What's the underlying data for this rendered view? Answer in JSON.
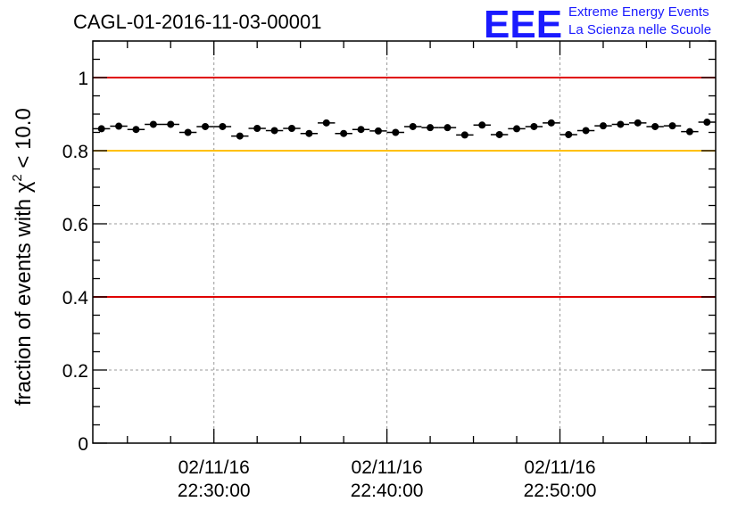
{
  "chart_data": {
    "type": "scatter",
    "title": "CAGL-01-2016-11-03-00001",
    "ylabel_main": "fraction of events with χ",
    "ylabel_sup": "2",
    "ylabel_rest": " < 10.0",
    "xlim": [
      "22:23:00",
      "22:59:00"
    ],
    "ylim": [
      0,
      1.1
    ],
    "yticks": [
      "0",
      "0.2",
      "0.4",
      "0.6",
      "0.8",
      "1"
    ],
    "yticks_values": [
      0,
      0.2,
      0.4,
      0.6,
      0.8,
      1.0
    ],
    "xticks": [
      {
        "time": "22:30:00",
        "date": "02/11/16"
      },
      {
        "time": "22:40:00",
        "date": "02/11/16"
      },
      {
        "time": "22:50:00",
        "date": "02/11/16"
      }
    ],
    "grid": true,
    "bin_width_minutes": 1,
    "reference_lines": [
      {
        "y": 1.0,
        "color": "#e00000"
      },
      {
        "y": 0.8,
        "color": "#ffc000"
      },
      {
        "y": 0.4,
        "color": "#e00000"
      }
    ],
    "series": [
      {
        "color": "#000000",
        "x": [
          "22:23:30",
          "22:24:30",
          "22:25:30",
          "22:26:30",
          "22:27:30",
          "22:28:30",
          "22:29:30",
          "22:30:30",
          "22:31:30",
          "22:32:30",
          "22:33:30",
          "22:34:30",
          "22:35:30",
          "22:36:30",
          "22:37:30",
          "22:38:30",
          "22:39:30",
          "22:40:30",
          "22:41:30",
          "22:42:30",
          "22:43:30",
          "22:44:30",
          "22:45:30",
          "22:46:30",
          "22:47:30",
          "22:48:30",
          "22:49:30",
          "22:50:30",
          "22:51:30",
          "22:52:30",
          "22:53:30",
          "22:54:30",
          "22:55:30",
          "22:56:30",
          "22:57:30",
          "22:58:30"
        ],
        "y": [
          0.86,
          0.867,
          0.858,
          0.872,
          0.872,
          0.85,
          0.866,
          0.866,
          0.84,
          0.861,
          0.855,
          0.861,
          0.847,
          0.876,
          0.847,
          0.858,
          0.854,
          0.85,
          0.866,
          0.863,
          0.863,
          0.843,
          0.87,
          0.844,
          0.86,
          0.866,
          0.876,
          0.844,
          0.855,
          0.868,
          0.872,
          0.876,
          0.866,
          0.868,
          0.852,
          0.878
        ]
      }
    ]
  },
  "logo": {
    "big_text": "EEE",
    "line1": "Extreme Energy Events",
    "line2": "La Scienza nelle Scuole"
  }
}
